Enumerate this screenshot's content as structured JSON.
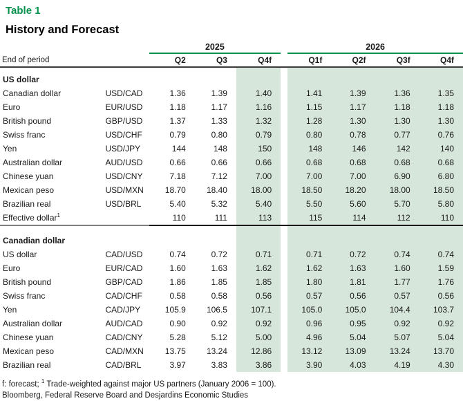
{
  "title": "Table 1",
  "subtitle": "History and Forecast",
  "header": {
    "end_of_period": "End of period",
    "year_groups": [
      {
        "label": "2025",
        "quarters": [
          "Q2",
          "Q3",
          "Q4f"
        ]
      },
      {
        "label": "2026",
        "quarters": [
          "Q1f",
          "Q2f",
          "Q3f",
          "Q4f"
        ]
      }
    ]
  },
  "sections": [
    {
      "label": "US dollar",
      "rows": [
        {
          "name": "Canadian dollar",
          "pair": "USD/CAD",
          "values": [
            "1.36",
            "1.39",
            "1.40",
            "1.41",
            "1.39",
            "1.36",
            "1.35"
          ]
        },
        {
          "name": "Euro",
          "pair": "EUR/USD",
          "values": [
            "1.18",
            "1.17",
            "1.16",
            "1.15",
            "1.17",
            "1.18",
            "1.18"
          ]
        },
        {
          "name": "British pound",
          "pair": "GBP/USD",
          "values": [
            "1.37",
            "1.33",
            "1.32",
            "1.28",
            "1.30",
            "1.30",
            "1.30"
          ]
        },
        {
          "name": "Swiss franc",
          "pair": "USD/CHF",
          "values": [
            "0.79",
            "0.80",
            "0.79",
            "0.80",
            "0.78",
            "0.77",
            "0.76"
          ]
        },
        {
          "name": "Yen",
          "pair": "USD/JPY",
          "values": [
            "144",
            "148",
            "150",
            "148",
            "146",
            "142",
            "140"
          ]
        },
        {
          "name": "Australian dollar",
          "pair": "AUD/USD",
          "values": [
            "0.66",
            "0.66",
            "0.66",
            "0.68",
            "0.68",
            "0.68",
            "0.68"
          ]
        },
        {
          "name": "Chinese yuan",
          "pair": "USD/CNY",
          "values": [
            "7.18",
            "7.12",
            "7.00",
            "7.00",
            "7.00",
            "6.90",
            "6.80"
          ]
        },
        {
          "name": "Mexican peso",
          "pair": "USD/MXN",
          "values": [
            "18.70",
            "18.40",
            "18.00",
            "18.50",
            "18.20",
            "18.00",
            "18.50"
          ]
        },
        {
          "name": "Brazilian real",
          "pair": "USD/BRL",
          "values": [
            "5.40",
            "5.32",
            "5.40",
            "5.50",
            "5.60",
            "5.70",
            "5.80"
          ]
        },
        {
          "name": "Effective dollar",
          "superscript": "1",
          "pair": "",
          "values": [
            "110",
            "111",
            "113",
            "115",
            "114",
            "112",
            "110"
          ]
        }
      ]
    },
    {
      "label": "Canadian dollar",
      "rows": [
        {
          "name": "US dollar",
          "pair": "CAD/USD",
          "values": [
            "0.74",
            "0.72",
            "0.71",
            "0.71",
            "0.72",
            "0.74",
            "0.74"
          ]
        },
        {
          "name": "Euro",
          "pair": "EUR/CAD",
          "values": [
            "1.60",
            "1.63",
            "1.62",
            "1.62",
            "1.63",
            "1.60",
            "1.59"
          ]
        },
        {
          "name": "British pound",
          "pair": "GBP/CAD",
          "values": [
            "1.86",
            "1.85",
            "1.85",
            "1.80",
            "1.81",
            "1.77",
            "1.76"
          ]
        },
        {
          "name": "Swiss franc",
          "pair": "CAD/CHF",
          "values": [
            "0.58",
            "0.58",
            "0.56",
            "0.57",
            "0.56",
            "0.57",
            "0.56"
          ]
        },
        {
          "name": "Yen",
          "pair": "CAD/JPY",
          "values": [
            "105.9",
            "106.5",
            "107.1",
            "105.0",
            "105.0",
            "104.4",
            "103.7"
          ]
        },
        {
          "name": "Australian dollar",
          "pair": "AUD/CAD",
          "values": [
            "0.90",
            "0.92",
            "0.92",
            "0.96",
            "0.95",
            "0.92",
            "0.92"
          ]
        },
        {
          "name": "Chinese yuan",
          "pair": "CAD/CNY",
          "values": [
            "5.28",
            "5.12",
            "5.00",
            "4.96",
            "5.04",
            "5.07",
            "5.04"
          ]
        },
        {
          "name": "Mexican peso",
          "pair": "CAD/MXN",
          "values": [
            "13.75",
            "13.24",
            "12.86",
            "13.12",
            "13.09",
            "13.24",
            "13.70"
          ]
        },
        {
          "name": "Brazilian real",
          "pair": "CAD/BRL",
          "values": [
            "3.97",
            "3.83",
            "3.86",
            "3.90",
            "4.03",
            "4.19",
            "4.30"
          ]
        }
      ]
    }
  ],
  "footnotes": {
    "line1_prefix": "f: forecast; ",
    "line1_superscript": "1",
    "line1_rest": " Trade-weighted against major US partners (January 2006 = 100).",
    "line2": "Bloomberg, Federal Reserve Board and Desjardins Economic Studies"
  },
  "colors": {
    "title_green": "#00914A",
    "rule_green": "#00914A",
    "shading_green": "#D6E6DB",
    "header_line": "#3B3B3B",
    "divider_black": "#1A1A1A",
    "divider_gray": "#7F7F7F"
  }
}
